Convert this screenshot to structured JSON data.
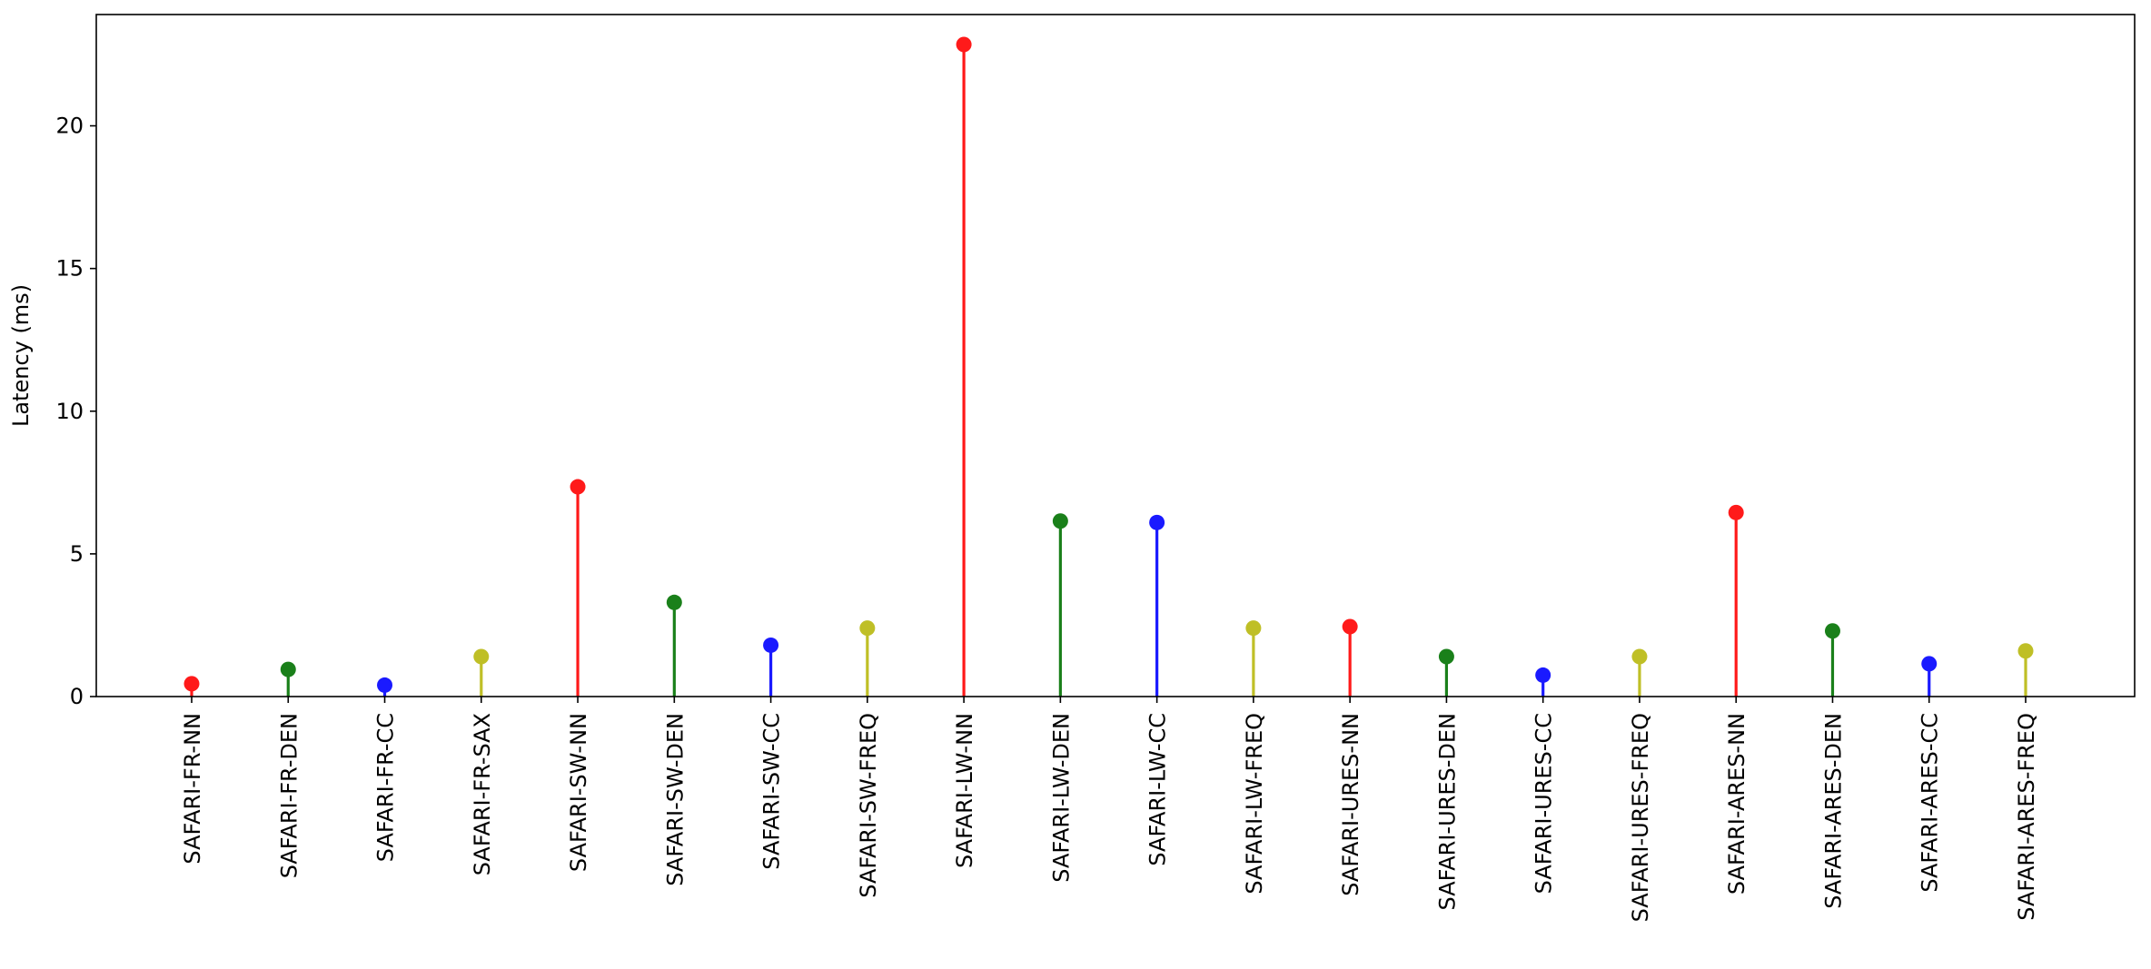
{
  "chart_data": {
    "type": "stem",
    "title": "",
    "xlabel": "",
    "ylabel": "Latency (ms)",
    "ylim": [
      0,
      23.9
    ],
    "yticks": [
      0,
      5,
      10,
      15,
      20
    ],
    "grid": false,
    "legend": "none",
    "categories": [
      "SAFARI-FR-NN",
      "SAFARI-FR-DEN",
      "SAFARI-FR-CC",
      "SAFARI-FR-SAX",
      "SAFARI-SW-NN",
      "SAFARI-SW-DEN",
      "SAFARI-SW-CC",
      "SAFARI-SW-FREQ",
      "SAFARI-LW-NN",
      "SAFARI-LW-DEN",
      "SAFARI-LW-CC",
      "SAFARI-LW-FREQ",
      "SAFARI-URES-NN",
      "SAFARI-URES-DEN",
      "SAFARI-URES-CC",
      "SAFARI-URES-FREQ",
      "SAFARI-ARES-NN",
      "SAFARI-ARES-DEN",
      "SAFARI-ARES-CC",
      "SAFARI-ARES-FREQ"
    ],
    "values": [
      0.45,
      0.95,
      0.4,
      1.4,
      7.35,
      3.3,
      1.8,
      2.4,
      22.85,
      6.15,
      6.1,
      2.4,
      2.45,
      1.4,
      0.75,
      1.4,
      6.45,
      2.3,
      1.15,
      1.6
    ],
    "colors": [
      "#ff1a1a",
      "#1a801a",
      "#1a1aff",
      "#bfbf26",
      "#ff1a1a",
      "#1a801a",
      "#1a1aff",
      "#bfbf26",
      "#ff1a1a",
      "#1a801a",
      "#1a1aff",
      "#bfbf26",
      "#ff1a1a",
      "#1a801a",
      "#1a1aff",
      "#bfbf26",
      "#ff1a1a",
      "#1a801a",
      "#1a1aff",
      "#bfbf26"
    ]
  }
}
